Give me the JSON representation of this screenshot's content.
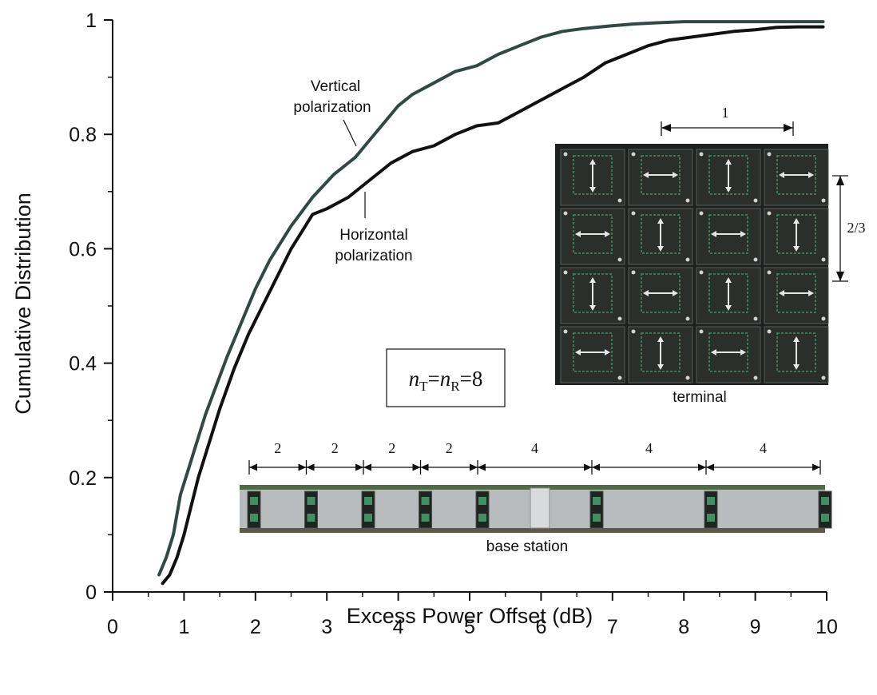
{
  "chart_data": {
    "type": "line",
    "title": "",
    "xlabel": "Excess Power Offset (dB)",
    "ylabel": "Cumulative Distribution",
    "xlim": [
      0,
      10
    ],
    "ylim": [
      0,
      1
    ],
    "x_ticks": [
      "0",
      "1",
      "2",
      "3",
      "4",
      "5",
      "6",
      "7",
      "8",
      "9",
      "10"
    ],
    "y_ticks": [
      "0",
      "0.2",
      "0.4",
      "0.6",
      "0.8",
      "1"
    ],
    "grid": false,
    "series": [
      {
        "name": "Vertical polarization",
        "color": "#2f4a44",
        "x": [
          0.65,
          0.75,
          0.85,
          0.95,
          1.05,
          1.15,
          1.3,
          1.45,
          1.6,
          1.8,
          2.0,
          2.2,
          2.5,
          2.8,
          3.1,
          3.4,
          3.6,
          3.8,
          4.0,
          4.2,
          4.5,
          4.8,
          5.1,
          5.4,
          5.7,
          6.0,
          6.3,
          6.6,
          7.0,
          7.3,
          7.6,
          8.0,
          8.5,
          9.0,
          9.5,
          9.95
        ],
        "y": [
          0.03,
          0.06,
          0.1,
          0.17,
          0.21,
          0.25,
          0.31,
          0.36,
          0.41,
          0.47,
          0.53,
          0.58,
          0.64,
          0.69,
          0.73,
          0.76,
          0.79,
          0.82,
          0.85,
          0.87,
          0.89,
          0.91,
          0.92,
          0.94,
          0.955,
          0.97,
          0.98,
          0.985,
          0.99,
          0.993,
          0.995,
          0.997,
          0.997,
          0.997,
          0.997,
          0.997
        ]
      },
      {
        "name": "Horizontal polarization",
        "color": "#111111",
        "x": [
          0.7,
          0.8,
          0.9,
          1.0,
          1.1,
          1.2,
          1.35,
          1.5,
          1.7,
          1.9,
          2.1,
          2.3,
          2.5,
          2.7,
          2.8,
          3.0,
          3.3,
          3.6,
          3.9,
          4.2,
          4.5,
          4.8,
          5.1,
          5.4,
          5.7,
          6.0,
          6.3,
          6.6,
          6.9,
          7.2,
          7.5,
          7.8,
          8.1,
          8.4,
          8.7,
          9.0,
          9.3,
          9.6,
          9.95
        ],
        "y": [
          0.015,
          0.03,
          0.06,
          0.1,
          0.15,
          0.2,
          0.26,
          0.32,
          0.39,
          0.45,
          0.5,
          0.55,
          0.6,
          0.64,
          0.66,
          0.67,
          0.69,
          0.72,
          0.75,
          0.77,
          0.78,
          0.8,
          0.815,
          0.82,
          0.84,
          0.86,
          0.88,
          0.9,
          0.925,
          0.94,
          0.955,
          0.965,
          0.97,
          0.975,
          0.98,
          0.983,
          0.987,
          0.988,
          0.988
        ]
      }
    ],
    "annotations": {
      "vertical_label_line1": "Vertical",
      "vertical_label_line2": "polarization",
      "horizontal_label_line1": "Horizontal",
      "horizontal_label_line2": "polarization",
      "formula": {
        "n": "n",
        "sub_t": "T",
        "eq": "=",
        "sub_r": "R",
        "value": "=8"
      }
    },
    "inset_terminal": {
      "caption": "terminal",
      "dim_horizontal": "1",
      "dim_vertical": "2/3"
    },
    "inset_base_station": {
      "caption": "base station",
      "spacings": [
        "2",
        "2",
        "2",
        "2",
        "4",
        "4",
        "4"
      ]
    }
  }
}
